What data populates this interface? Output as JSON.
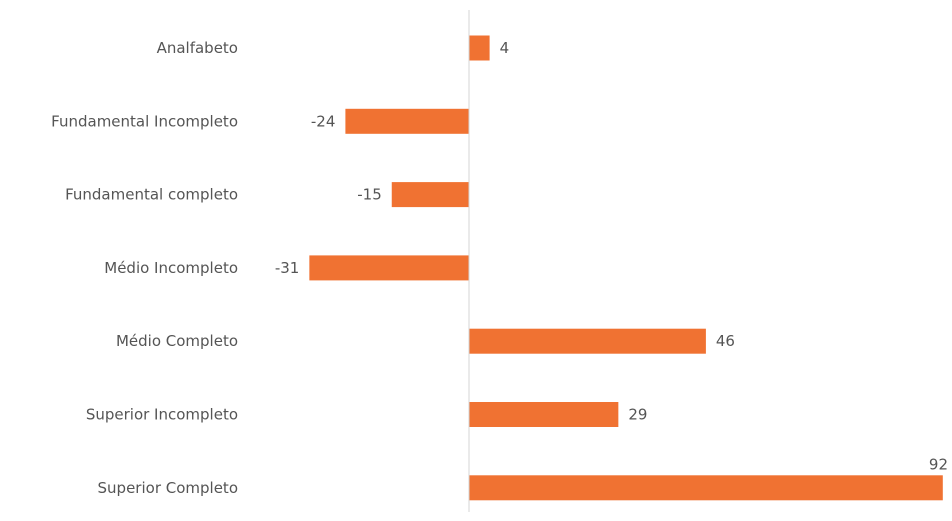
{
  "chart_data": {
    "type": "bar",
    "orientation": "horizontal",
    "categories": [
      "Analfabeto",
      "Fundamental Incompleto",
      "Fundamental completo",
      "Médio Incompleto",
      "Médio Completo",
      "Superior Incompleto",
      "Superior Completo"
    ],
    "values": [
      4,
      -24,
      -15,
      -31,
      46,
      29,
      92
    ],
    "data_labels": [
      "4",
      "-24",
      "-15",
      "-31",
      "46",
      "29",
      "92"
    ],
    "xlim": [
      -31,
      92
    ],
    "grid": false,
    "zero_line": true,
    "title": "",
    "xlabel": "",
    "ylabel": ""
  },
  "colors": {
    "bar": "#F07232",
    "label_text": "#555555",
    "zero_line": "#d4d4d4",
    "background": "#ffffff"
  }
}
